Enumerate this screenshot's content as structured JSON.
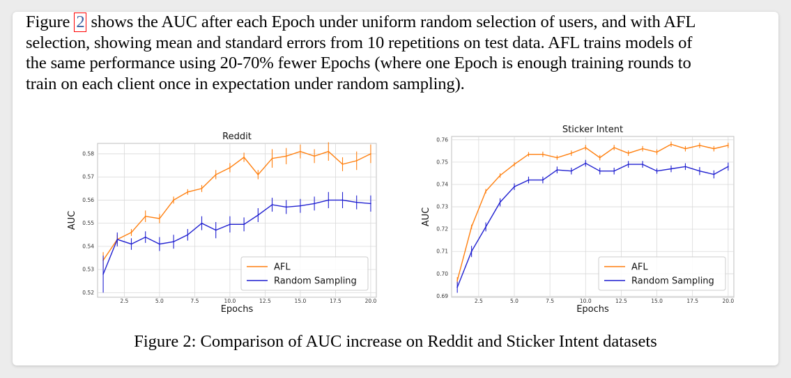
{
  "paragraph": {
    "line1_pre": "Figure ",
    "ref": "2",
    "line1_post": " shows the AUC after each Epoch under uniform random selection of users, and with AFL",
    "line2": "selection, showing mean and standard errors from 10 repetitions on test data.  AFL trains models of",
    "line3": "the same performance using 20-70% fewer Epochs (where one Epoch is enough training rounds to",
    "line4": "train on each client once in expectation under random sampling)."
  },
  "caption": "Figure 2: Comparison of AUC increase on Reddit and Sticker Intent datasets",
  "colors": {
    "afl": "#ff7f0e",
    "random": "#1f1fd0",
    "grid": "#d9d9d9",
    "frame": "#bfbfbf"
  },
  "chart_data": [
    {
      "type": "line",
      "title": "Reddit",
      "xlabel": "Epochs",
      "ylabel": "AUC",
      "xlim": [
        0.6,
        20.4
      ],
      "ylim": [
        0.518,
        0.5845
      ],
      "xticks": [
        "2.5",
        "5.0",
        "7.5",
        "10.0",
        "12.5",
        "15.0",
        "17.5",
        "20.0"
      ],
      "xtick_values": [
        2.5,
        5.0,
        7.5,
        10.0,
        12.5,
        15.0,
        17.5,
        20.0
      ],
      "yticks": [
        "0.52",
        "0.53",
        "0.54",
        "0.55",
        "0.56",
        "0.57",
        "0.58"
      ],
      "ytick_values": [
        0.52,
        0.53,
        0.54,
        0.55,
        0.56,
        0.57,
        0.58
      ],
      "grid": true,
      "legend_position": "lower-right",
      "x": [
        1,
        2,
        3,
        4,
        5,
        6,
        7,
        8,
        9,
        10,
        11,
        12,
        13,
        14,
        15,
        16,
        17,
        18,
        19,
        20
      ],
      "series": [
        {
          "name": "AFL",
          "color": "#ff7f0e",
          "values": [
            0.534,
            0.543,
            0.546,
            0.553,
            0.552,
            0.56,
            0.5635,
            0.565,
            0.571,
            0.574,
            0.5785,
            0.571,
            0.578,
            0.579,
            0.581,
            0.579,
            0.581,
            0.5755,
            0.577,
            0.58
          ],
          "errors": [
            0.0035,
            0.002,
            0.0015,
            0.0025,
            0.002,
            0.0015,
            0.0012,
            0.0015,
            0.002,
            0.002,
            0.002,
            0.002,
            0.004,
            0.0035,
            0.003,
            0.003,
            0.004,
            0.003,
            0.004,
            0.004
          ]
        },
        {
          "name": "Random Sampling",
          "color": "#1f1fd0",
          "values": [
            0.528,
            0.543,
            0.541,
            0.544,
            0.541,
            0.542,
            0.545,
            0.55,
            0.547,
            0.5495,
            0.5495,
            0.5535,
            0.558,
            0.557,
            0.5575,
            0.5585,
            0.56,
            0.56,
            0.559,
            0.5585
          ],
          "errors": [
            0.008,
            0.003,
            0.0025,
            0.0025,
            0.003,
            0.003,
            0.0025,
            0.003,
            0.0035,
            0.0035,
            0.003,
            0.003,
            0.003,
            0.003,
            0.003,
            0.003,
            0.0035,
            0.0035,
            0.003,
            0.0035
          ]
        }
      ]
    },
    {
      "type": "line",
      "title": "Sticker Intent",
      "xlabel": "Epochs",
      "ylabel": "AUC",
      "xlim": [
        0.6,
        20.4
      ],
      "ylim": [
        0.6895,
        0.7615
      ],
      "xticks": [
        "2.5",
        "5.0",
        "7.5",
        "10.0",
        "12.5",
        "15.0",
        "17.5",
        "20.0"
      ],
      "xtick_values": [
        2.5,
        5.0,
        7.5,
        10.0,
        12.5,
        15.0,
        17.5,
        20.0
      ],
      "yticks": [
        "0.69",
        "0.70",
        "0.71",
        "0.72",
        "0.73",
        "0.74",
        "0.75",
        "0.76"
      ],
      "ytick_values": [
        0.69,
        0.7,
        0.71,
        0.72,
        0.73,
        0.74,
        0.75,
        0.76
      ],
      "grid": true,
      "legend_position": "lower-right",
      "x": [
        1,
        2,
        3,
        4,
        5,
        6,
        7,
        8,
        9,
        10,
        11,
        12,
        13,
        14,
        15,
        16,
        17,
        18,
        19,
        20
      ],
      "series": [
        {
          "name": "AFL",
          "color": "#ff7f0e",
          "values": [
            0.697,
            0.721,
            0.737,
            0.744,
            0.749,
            0.7535,
            0.7535,
            0.752,
            0.754,
            0.7565,
            0.752,
            0.7565,
            0.754,
            0.756,
            0.7545,
            0.758,
            0.756,
            0.7575,
            0.756,
            0.7575
          ],
          "errors": [
            0.0015,
            0.001,
            0.001,
            0.001,
            0.001,
            0.001,
            0.0012,
            0.001,
            0.0012,
            0.0012,
            0.0012,
            0.0012,
            0.0012,
            0.0012,
            0.0012,
            0.0012,
            0.0012,
            0.0012,
            0.0012,
            0.0012
          ]
        },
        {
          "name": "Random Sampling",
          "color": "#1f1fd0",
          "values": [
            0.694,
            0.71,
            0.721,
            0.732,
            0.739,
            0.742,
            0.742,
            0.7465,
            0.746,
            0.7495,
            0.746,
            0.746,
            0.749,
            0.749,
            0.746,
            0.747,
            0.748,
            0.746,
            0.7445,
            0.748
          ],
          "errors": [
            0.0025,
            0.0025,
            0.002,
            0.0018,
            0.0015,
            0.0015,
            0.0015,
            0.0015,
            0.0015,
            0.0015,
            0.0015,
            0.0015,
            0.0015,
            0.0015,
            0.0012,
            0.0015,
            0.0015,
            0.0018,
            0.0018,
            0.0018
          ]
        }
      ]
    }
  ]
}
